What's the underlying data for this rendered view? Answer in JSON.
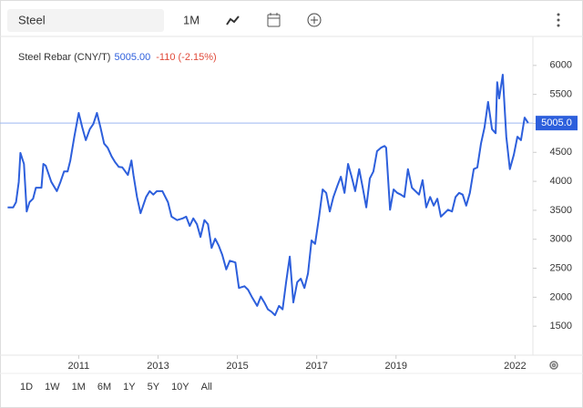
{
  "toolbar": {
    "search": "Steel",
    "interval": "1M"
  },
  "range_buttons": [
    "1D",
    "1W",
    "1M",
    "6M",
    "1Y",
    "5Y",
    "10Y",
    "All"
  ],
  "chart_data": {
    "type": "line",
    "last_value_text": "5005.00",
    "change_text": "-110 (-2.15%)",
    "last_price": {
      "value": 5005,
      "label": "5005.0"
    },
    "x": [
      2009.21,
      2009.35,
      2009.42,
      2009.49,
      2009.53,
      2009.62,
      2009.69,
      2009.76,
      2009.85,
      2009.92,
      2010.06,
      2010.11,
      2010.17,
      2010.31,
      2010.45,
      2010.54,
      2010.63,
      2010.72,
      2010.79,
      2010.89,
      2011.0,
      2011.09,
      2011.18,
      2011.28,
      2011.37,
      2011.46,
      2011.55,
      2011.64,
      2011.73,
      2011.83,
      2011.92,
      2012.01,
      2012.1,
      2012.24,
      2012.33,
      2012.38,
      2012.47,
      2012.56,
      2012.7,
      2012.79,
      2012.88,
      2012.97,
      2013.11,
      2013.25,
      2013.34,
      2013.48,
      2013.62,
      2013.71,
      2013.8,
      2013.89,
      2013.98,
      2014.07,
      2014.17,
      2014.26,
      2014.35,
      2014.44,
      2014.53,
      2014.62,
      2014.72,
      2014.81,
      2014.95,
      2015.04,
      2015.18,
      2015.27,
      2015.36,
      2015.5,
      2015.59,
      2015.68,
      2015.77,
      2015.86,
      2015.95,
      2016.05,
      2016.14,
      2016.23,
      2016.32,
      2016.41,
      2016.51,
      2016.6,
      2016.69,
      2016.78,
      2016.87,
      2016.96,
      2017.06,
      2017.15,
      2017.24,
      2017.33,
      2017.42,
      2017.52,
      2017.61,
      2017.7,
      2017.79,
      2017.88,
      2017.97,
      2018.07,
      2018.16,
      2018.25,
      2018.34,
      2018.43,
      2018.52,
      2018.62,
      2018.71,
      2018.75,
      2018.85,
      2018.94,
      2019.03,
      2019.12,
      2019.21,
      2019.3,
      2019.4,
      2019.49,
      2019.58,
      2019.67,
      2019.76,
      2019.86,
      2019.95,
      2020.04,
      2020.13,
      2020.22,
      2020.31,
      2020.41,
      2020.5,
      2020.59,
      2020.68,
      2020.77,
      2020.86,
      2020.96,
      2021.05,
      2021.14,
      2021.23,
      2021.32,
      2021.42,
      2021.51,
      2021.55,
      2021.6,
      2021.69,
      2021.78,
      2021.87,
      2021.97,
      2022.06,
      2022.15,
      2022.24,
      2022.33
    ],
    "series": [
      {
        "name": "Steel Rebar (CNY/T)",
        "color": "#2d5fdc",
        "values": [
          3550,
          3550,
          3640,
          3990,
          4490,
          4300,
          3480,
          3640,
          3700,
          3890,
          3890,
          4300,
          4270,
          3990,
          3830,
          3990,
          4170,
          4170,
          4360,
          4770,
          5180,
          4930,
          4710,
          4900,
          4990,
          5180,
          4930,
          4650,
          4580,
          4430,
          4330,
          4250,
          4240,
          4110,
          4360,
          4110,
          3730,
          3450,
          3730,
          3830,
          3770,
          3830,
          3830,
          3640,
          3390,
          3330,
          3360,
          3390,
          3230,
          3360,
          3260,
          3040,
          3330,
          3260,
          2850,
          3010,
          2890,
          2730,
          2480,
          2630,
          2600,
          2160,
          2190,
          2130,
          2010,
          1850,
          2010,
          1910,
          1790,
          1750,
          1690,
          1850,
          1790,
          2260,
          2700,
          1910,
          2260,
          2320,
          2160,
          2410,
          2980,
          2920,
          3390,
          3860,
          3800,
          3480,
          3730,
          3920,
          4080,
          3800,
          4300,
          4080,
          3830,
          4210,
          3890,
          3550,
          4050,
          4170,
          4520,
          4580,
          4610,
          4580,
          3510,
          3860,
          3800,
          3770,
          3730,
          4210,
          3890,
          3830,
          3770,
          4020,
          3550,
          3730,
          3580,
          3700,
          3390,
          3450,
          3510,
          3480,
          3730,
          3800,
          3770,
          3580,
          3800,
          4210,
          4240,
          4650,
          4930,
          5370,
          4900,
          4830,
          5710,
          5430,
          5840,
          4770,
          4210,
          4460,
          4770,
          4710,
          5100,
          5005
        ]
      }
    ],
    "xlim": [
      2009.2,
      2022.45
    ],
    "xticks": [
      2011,
      2013,
      2015,
      2017,
      2019,
      2022
    ],
    "ylim": [
      1000,
      6500
    ],
    "yticks": [
      1500,
      2000,
      2500,
      3000,
      3500,
      4000,
      4500,
      5000,
      5500,
      6000
    ]
  }
}
